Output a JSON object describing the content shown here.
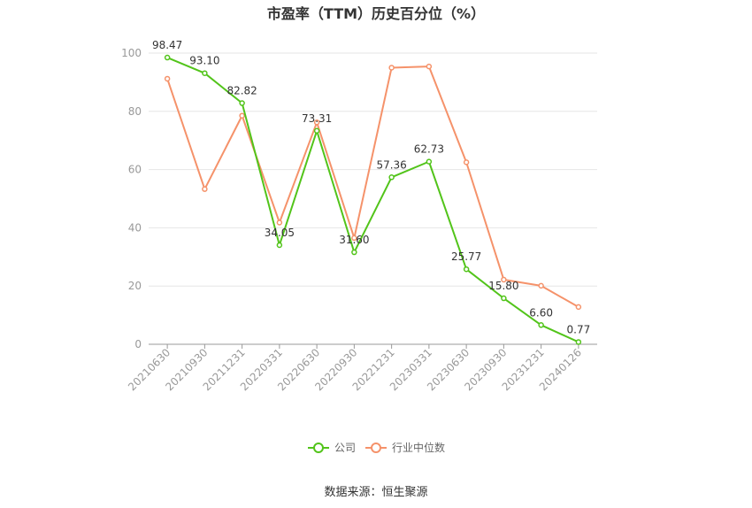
{
  "chart_data": {
    "type": "line",
    "title": "市盈率（TTM）历史百分位（%）",
    "categories": [
      "20210630",
      "20210930",
      "20211231",
      "20220331",
      "20220630",
      "20220930",
      "20221231",
      "20230331",
      "20230630",
      "20230930",
      "20231231",
      "20240126"
    ],
    "series": [
      {
        "name": "公司",
        "color": "#52c41a",
        "values": [
          98.47,
          93.1,
          82.82,
          34.05,
          73.31,
          31.6,
          57.36,
          62.73,
          25.77,
          15.8,
          6.6,
          0.77
        ],
        "labels": [
          "98.47",
          "93.10",
          "82.82",
          "34.05",
          "73.31",
          "31.60",
          "57.36",
          "62.73",
          "25.77",
          "15.80",
          "6.60",
          "0.77"
        ]
      },
      {
        "name": "行业中位数",
        "color": "#f5926a",
        "values": [
          91.2,
          53.3,
          78.5,
          41.8,
          76.2,
          36.5,
          95.0,
          95.4,
          62.5,
          22.2,
          20.1,
          12.8
        ]
      }
    ],
    "ylim": [
      0,
      100
    ],
    "yticks": [
      "0",
      "20",
      "40",
      "60",
      "80",
      "100"
    ],
    "grid": true,
    "legend_position": "bottom"
  },
  "source": "数据来源：恒生聚源"
}
